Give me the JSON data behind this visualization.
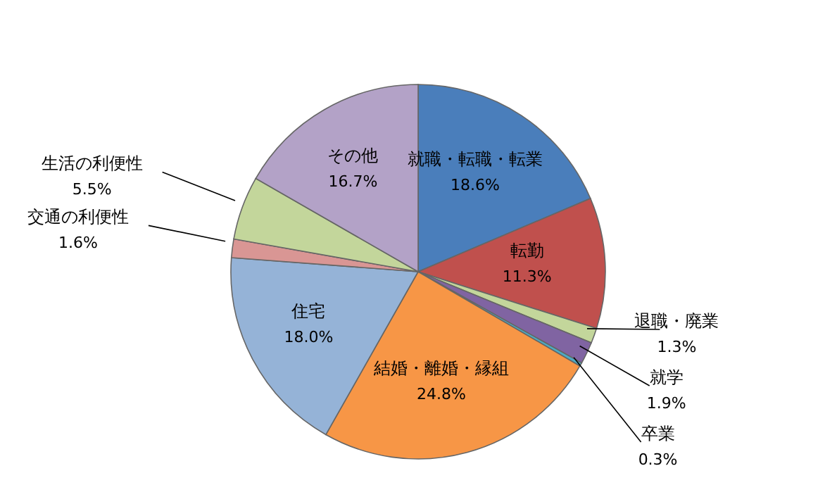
{
  "chart_data": {
    "type": "pie",
    "categories": [
      "就職・転職・転業",
      "転勤",
      "退職・廃業",
      "就学",
      "卒業",
      "結婚・離婚・縁組",
      "住宅",
      "交通の利便性",
      "生活の利便性",
      "その他"
    ],
    "values": [
      18.6,
      11.3,
      1.3,
      1.9,
      0.3,
      24.8,
      18.0,
      1.6,
      5.5,
      16.7
    ],
    "value_labels": [
      "18.6%",
      "11.3%",
      "1.3%",
      "1.9%",
      "0.3%",
      "24.8%",
      "18.0%",
      "1.6%",
      "5.5%",
      "16.7%"
    ],
    "colors": [
      "#4a7ebb",
      "#c0504d",
      "#c3d69b",
      "#8064a2",
      "#4bacc6",
      "#f79646",
      "#95b3d7",
      "#d99694",
      "#c3d69b",
      "#b3a2c7"
    ],
    "legend": false
  }
}
